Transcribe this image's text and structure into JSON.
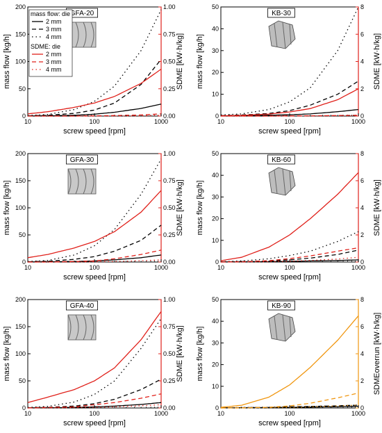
{
  "figure": {
    "background": "#ffffff"
  },
  "colors": {
    "mass": "#000000",
    "sdme": "#e0201a",
    "sdme_orange": "#f0960f"
  },
  "legend": {
    "mass_header": "mass flow: die",
    "sdme_header": "SDME: die",
    "entries": [
      "2 mm",
      "3 mm",
      "4 mm"
    ]
  },
  "chart_data": [
    {
      "type": "line",
      "title": "GFA-20",
      "icon": "gfa-screw-element-icon",
      "xlabel": "screw speed [rpm]",
      "ylabel": "mass flow [kg/h]",
      "y2label": "SDME [kW·h/kg]",
      "xscale": "log",
      "xlim": [
        10,
        1000
      ],
      "xticks": [
        "10",
        "100",
        "1000"
      ],
      "ylim": [
        0,
        200
      ],
      "yticks": [
        "0",
        "50",
        "100",
        "150",
        "200"
      ],
      "y2lim": [
        0,
        1.0
      ],
      "y2ticks": [
        "0.00",
        "0.25",
        "0.50",
        "0.75",
        "1.00"
      ],
      "x": [
        10,
        20,
        50,
        100,
        200,
        500,
        1000
      ],
      "mass_series": [
        {
          "name": "2 mm",
          "values": [
            0.2,
            0.5,
            1.5,
            3.5,
            7,
            14,
            22
          ]
        },
        {
          "name": "3 mm",
          "values": [
            0.5,
            1.5,
            5,
            11,
            24,
            58,
            104
          ]
        },
        {
          "name": "4 mm",
          "values": [
            1,
            3,
            12,
            27,
            55,
            120,
            195
          ]
        }
      ],
      "sdme_series": [
        {
          "name": "2 mm",
          "values": [
            0.02,
            0.04,
            0.08,
            0.12,
            0.18,
            0.3,
            0.43
          ]
        },
        {
          "name": "3 mm",
          "values": [
            0,
            0,
            0,
            0.002,
            0.005,
            0.01,
            0.02
          ]
        },
        {
          "name": "4 mm",
          "values": [
            0,
            0,
            0,
            0,
            0,
            0.002,
            0.005
          ]
        }
      ]
    },
    {
      "type": "line",
      "title": "KB-30",
      "icon": "kb-kneading-block-icon",
      "xlabel": "screw speed [rpm]",
      "ylabel": "mass flow [kg/h]",
      "y2label": "SDME [kW·h/kg]",
      "xscale": "log",
      "xlim": [
        10,
        1000
      ],
      "xticks": [
        "10",
        "100",
        "1000"
      ],
      "ylim": [
        0,
        50
      ],
      "yticks": [
        "0",
        "10",
        "20",
        "30",
        "40",
        "50"
      ],
      "y2lim": [
        0,
        8
      ],
      "y2ticks": [
        "0",
        "2",
        "4",
        "6",
        "8"
      ],
      "x": [
        10,
        20,
        50,
        100,
        200,
        500,
        1000
      ],
      "mass_series": [
        {
          "name": "2 mm",
          "values": [
            0.1,
            0.2,
            0.4,
            0.6,
            1.0,
            2.0,
            3.0
          ]
        },
        {
          "name": "3 mm",
          "values": [
            0.2,
            0.5,
            1.2,
            2.5,
            5,
            10,
            16
          ]
        },
        {
          "name": "4 mm",
          "values": [
            0.5,
            1.0,
            3,
            6.5,
            13,
            30,
            50
          ]
        }
      ],
      "sdme_series": [
        {
          "name": "2 mm",
          "values": [
            0.02,
            0.05,
            0.15,
            0.3,
            0.55,
            1.2,
            2.0
          ]
        },
        {
          "name": "3 mm",
          "values": [
            0,
            0,
            0,
            0.01,
            0.02,
            0.04,
            0.06
          ]
        },
        {
          "name": "4 mm",
          "values": [
            0,
            0,
            0,
            0,
            0.01,
            0.02,
            0.03
          ]
        }
      ]
    },
    {
      "type": "line",
      "title": "GFA-30",
      "icon": "gfa-screw-element-icon",
      "xlabel": "screw speed [rpm]",
      "ylabel": "mass flow [kg/h]",
      "y2label": "SDME [kW·h/kg]",
      "xscale": "log",
      "xlim": [
        10,
        1000
      ],
      "xticks": [
        "10",
        "100",
        "1000"
      ],
      "ylim": [
        0,
        200
      ],
      "yticks": [
        "0",
        "50",
        "100",
        "150",
        "200"
      ],
      "y2lim": [
        0,
        1.0
      ],
      "y2ticks": [
        "0.00",
        "0.25",
        "0.50",
        "0.75",
        "1.00"
      ],
      "x": [
        10,
        20,
        50,
        100,
        200,
        500,
        1000
      ],
      "mass_series": [
        {
          "name": "2 mm",
          "values": [
            0.2,
            0.4,
            1,
            2,
            4,
            8,
            13
          ]
        },
        {
          "name": "3 mm",
          "values": [
            0.5,
            1.5,
            5,
            10,
            20,
            40,
            68
          ]
        },
        {
          "name": "4 mm",
          "values": [
            1,
            3,
            13,
            30,
            60,
            125,
            190
          ]
        }
      ],
      "sdme_series": [
        {
          "name": "2 mm",
          "values": [
            0.04,
            0.07,
            0.13,
            0.19,
            0.28,
            0.46,
            0.66
          ]
        },
        {
          "name": "3 mm",
          "values": [
            0,
            0,
            0.005,
            0.01,
            0.03,
            0.07,
            0.11
          ]
        },
        {
          "name": "4 mm",
          "values": [
            0,
            0,
            0,
            0.002,
            0.005,
            0.012,
            0.02
          ]
        }
      ]
    },
    {
      "type": "line",
      "title": "KB-60",
      "icon": "kb-kneading-block-icon",
      "xlabel": "screw speed [rpm]",
      "ylabel": "mass flow [kg/h]",
      "y2label": "SDME [kW·h/kg]",
      "xscale": "log",
      "xlim": [
        10,
        1000
      ],
      "xticks": [
        "10",
        "100",
        "1000"
      ],
      "ylim": [
        0,
        50
      ],
      "yticks": [
        "0",
        "10",
        "20",
        "30",
        "40",
        "50"
      ],
      "y2lim": [
        0,
        8
      ],
      "y2ticks": [
        "0",
        "2",
        "4",
        "6",
        "8"
      ],
      "x": [
        10,
        20,
        50,
        100,
        200,
        500,
        1000
      ],
      "mass_series": [
        {
          "name": "2 mm",
          "values": [
            0.05,
            0.1,
            0.2,
            0.3,
            0.5,
            0.7,
            1.0
          ]
        },
        {
          "name": "3 mm",
          "values": [
            0.1,
            0.2,
            0.5,
            1.0,
            1.8,
            3.5,
            5.5
          ]
        },
        {
          "name": "4 mm",
          "values": [
            0.2,
            0.5,
            1.5,
            3,
            5,
            9.5,
            14
          ]
        }
      ],
      "sdme_series": [
        {
          "name": "2 mm",
          "values": [
            0.1,
            0.35,
            1.1,
            2.0,
            3.2,
            5.0,
            6.6
          ]
        },
        {
          "name": "3 mm",
          "values": [
            0,
            0.02,
            0.1,
            0.25,
            0.45,
            0.8,
            1.05
          ]
        },
        {
          "name": "4 mm",
          "values": [
            0,
            0,
            0.02,
            0.06,
            0.12,
            0.22,
            0.35
          ]
        }
      ]
    },
    {
      "type": "line",
      "title": "GFA-40",
      "icon": "gfa-screw-element-icon",
      "xlabel": "screw speed [rpm]",
      "ylabel": "mass flow [kg/h]",
      "y2label": "SDME [kW·h/kg]",
      "xscale": "log",
      "xlim": [
        10,
        1000
      ],
      "xticks": [
        "10",
        "100",
        "1000"
      ],
      "ylim": [
        0,
        200
      ],
      "yticks": [
        "0",
        "50",
        "100",
        "150",
        "200"
      ],
      "y2lim": [
        0,
        1.0
      ],
      "y2ticks": [
        "0.00",
        "0.25",
        "0.50",
        "0.75",
        "1.00"
      ],
      "x": [
        10,
        20,
        50,
        100,
        200,
        500,
        1000
      ],
      "mass_series": [
        {
          "name": "2 mm",
          "values": [
            0.2,
            0.4,
            1,
            2,
            3.5,
            6.5,
            10
          ]
        },
        {
          "name": "3 mm",
          "values": [
            0.5,
            1.2,
            3.5,
            8,
            16,
            34,
            53
          ]
        },
        {
          "name": "4 mm",
          "values": [
            1,
            3,
            11,
            25,
            50,
            110,
            165
          ]
        }
      ],
      "sdme_series": [
        {
          "name": "2 mm",
          "values": [
            0.05,
            0.1,
            0.17,
            0.25,
            0.37,
            0.63,
            0.89
          ]
        },
        {
          "name": "3 mm",
          "values": [
            0,
            0.005,
            0.01,
            0.03,
            0.05,
            0.09,
            0.13
          ]
        },
        {
          "name": "4 mm",
          "values": [
            0,
            0,
            0.003,
            0.006,
            0.01,
            0.02,
            0.03
          ]
        }
      ]
    },
    {
      "type": "line",
      "title": "KB-90",
      "icon": "kb-kneading-block-icon",
      "xlabel": "screw speed [rpm]",
      "ylabel": "mass flow [kg/h]",
      "y2label": "SDMEoverrun [kW·h/kg]",
      "y2color": "#f0960f",
      "xscale": "log",
      "xlim": [
        10,
        1000
      ],
      "xticks": [
        "10",
        "100",
        "1000"
      ],
      "ylim": [
        0,
        50
      ],
      "yticks": [
        "0",
        "10",
        "20",
        "30",
        "40",
        "50"
      ],
      "y2lim": [
        0,
        8
      ],
      "y2ticks": [
        "0",
        "2",
        "4",
        "6",
        "8"
      ],
      "x": [
        10,
        20,
        50,
        100,
        200,
        500,
        1000
      ],
      "mass_series": [
        {
          "name": "2 mm",
          "values": [
            0.05,
            0.1,
            0.2,
            0.3,
            0.4,
            0.6,
            0.8
          ]
        },
        {
          "name": "3 mm",
          "values": [
            0.1,
            0.15,
            0.3,
            0.5,
            0.7,
            1.0,
            1.3
          ]
        },
        {
          "name": "4 mm",
          "values": [
            0.1,
            0.2,
            0.3,
            0.5,
            0.7,
            1.0,
            1.2
          ]
        }
      ],
      "sdme_series": [
        {
          "name": "2 mm",
          "values": [
            0.05,
            0.2,
            0.8,
            1.7,
            3.0,
            5.0,
            6.8
          ]
        },
        {
          "name": "3 mm",
          "values": [
            0,
            0.01,
            0.05,
            0.15,
            0.35,
            0.75,
            1.1
          ]
        },
        {
          "name": "4 mm",
          "values": [
            0,
            0,
            0.02,
            0.04,
            0.08,
            0.15,
            0.22
          ]
        }
      ]
    }
  ]
}
